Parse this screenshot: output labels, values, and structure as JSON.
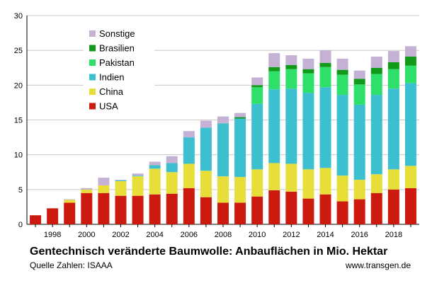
{
  "chart_data": {
    "type": "bar",
    "stacked": true,
    "title": "Gentechnisch veränderte Baumwolle: Anbauflächen in Mio. Hektar",
    "source_label": "Quelle Zahlen: ISAAA",
    "credit": "www.transgen.de",
    "xlabel": "",
    "ylabel": "",
    "ylim": [
      0,
      30
    ],
    "yticks": [
      0,
      5,
      10,
      15,
      20,
      25,
      30
    ],
    "grid": true,
    "legend_position": "top-left",
    "categories": [
      "1997",
      "1998",
      "1999",
      "2000",
      "2001",
      "2002",
      "2003",
      "2004",
      "2005",
      "2006",
      "2007",
      "2008",
      "2009",
      "2010",
      "2011",
      "2012",
      "2013",
      "2014",
      "2015",
      "2016",
      "2017",
      "2018",
      "2019"
    ],
    "x_tick_labels": [
      "1998",
      "2000",
      "2002",
      "2004",
      "2006",
      "2008",
      "2010",
      "2012",
      "2014",
      "2016",
      "2018"
    ],
    "series": [
      {
        "name": "USA",
        "color": "#cc1a0f",
        "values": [
          1.3,
          2.3,
          3.1,
          4.5,
          4.5,
          4.1,
          4.1,
          4.3,
          4.4,
          5.2,
          3.9,
          3.1,
          3.1,
          4.0,
          4.9,
          4.7,
          3.7,
          4.3,
          3.3,
          3.6,
          4.5,
          5.0,
          5.2
        ]
      },
      {
        "name": "China",
        "color": "#e8de3a",
        "values": [
          0,
          0,
          0.4,
          0.5,
          1.1,
          2.1,
          2.8,
          3.7,
          3.1,
          3.5,
          3.8,
          3.8,
          3.7,
          3.9,
          3.9,
          4.0,
          4.2,
          3.8,
          3.7,
          2.8,
          2.7,
          2.9,
          3.2
        ]
      },
      {
        "name": "Indien",
        "color": "#3cbfcf",
        "values": [
          0,
          0,
          0,
          0,
          0,
          0.1,
          0.1,
          0.5,
          1.3,
          3.8,
          6.2,
          7.6,
          8.4,
          9.4,
          10.6,
          10.8,
          11.0,
          11.6,
          11.6,
          10.8,
          11.4,
          11.6,
          11.9
        ]
      },
      {
        "name": "Pakistan",
        "color": "#2ee06a",
        "values": [
          0,
          0,
          0,
          0,
          0,
          0,
          0,
          0,
          0,
          0,
          0,
          0,
          0,
          2.4,
          2.6,
          2.8,
          2.8,
          2.9,
          2.9,
          2.9,
          3.0,
          2.8,
          2.5
        ]
      },
      {
        "name": "Brasilien",
        "color": "#119a1a",
        "values": [
          0,
          0,
          0,
          0,
          0,
          0,
          0,
          0,
          0,
          0,
          0,
          0,
          0.2,
          0.3,
          0.6,
          0.6,
          0.6,
          0.6,
          0.7,
          0.8,
          0.9,
          1.0,
          1.3
        ]
      },
      {
        "name": "Sonstige",
        "color": "#c4b1d4",
        "values": [
          0,
          0,
          0.1,
          0.2,
          1.1,
          0.1,
          0.3,
          0.5,
          1.0,
          0.9,
          1.0,
          1.0,
          0.6,
          1.1,
          2.0,
          1.4,
          1.5,
          1.8,
          1.6,
          1.2,
          1.6,
          1.6,
          1.5
        ]
      }
    ]
  }
}
